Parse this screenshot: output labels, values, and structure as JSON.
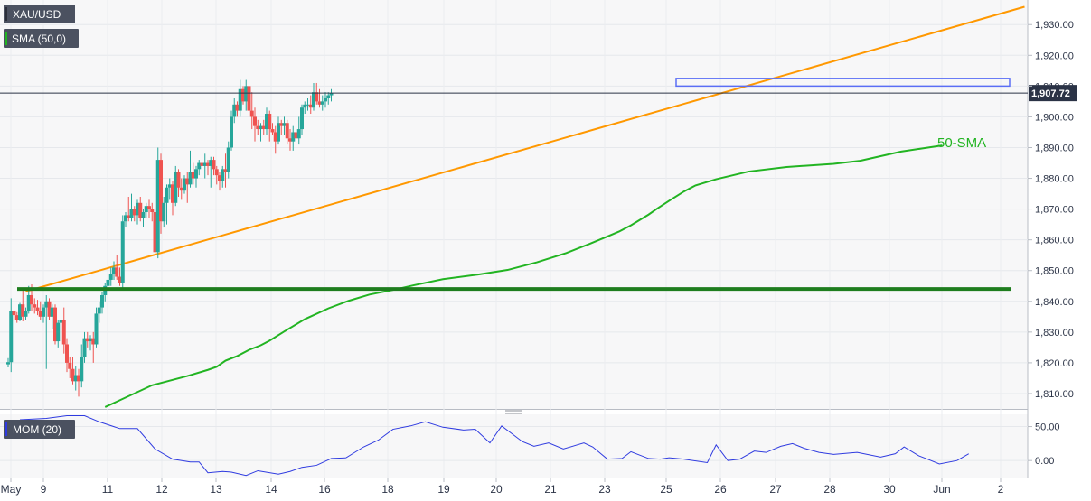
{
  "chart_data": [
    {
      "type": "candlestick",
      "symbol": "XAU/USD",
      "indicator_label": "SMA (50,0)",
      "sma_annotation": "50-SMA",
      "last_price_label": "1,907.72",
      "last_price": 1907.72,
      "ylim": [
        1805,
        1938
      ],
      "y_ticks": [
        "1,810.00",
        "1,820.00",
        "1,830.00",
        "1,840.00",
        "1,850.00",
        "1,860.00",
        "1,870.00",
        "1,880.00",
        "1,890.00",
        "1,900.00",
        "1,910.00",
        "1,920.00",
        "1,930.00"
      ],
      "x_labels": [
        "May",
        "9",
        "11",
        "12",
        "13",
        "14",
        "16",
        "18",
        "19",
        "20",
        "21",
        "23",
        "25",
        "26",
        "27",
        "28",
        "30",
        "Jun",
        "2"
      ],
      "grid": true,
      "colors": {
        "up": "#26a69a",
        "down": "#ef5350",
        "sma": "#22b422",
        "trendline": "#ff9800",
        "support": "#1e7d1e",
        "resistance_box": "#5b6ef5",
        "momentum": "#2f3be0",
        "price_line": "#2b3346"
      },
      "candles": [
        [
          1819.5,
          1821.5,
          1818.5,
          1820.2
        ],
        [
          1820.2,
          1841,
          1817,
          1837
        ],
        [
          1837,
          1841.5,
          1834,
          1835.5
        ],
        [
          1835.5,
          1836.5,
          1833,
          1834
        ],
        [
          1834,
          1839.5,
          1833.5,
          1839
        ],
        [
          1839,
          1843.5,
          1833.5,
          1835
        ],
        [
          1835,
          1838,
          1834,
          1837
        ],
        [
          1837,
          1845,
          1836,
          1842
        ],
        [
          1842,
          1845.5,
          1837,
          1839
        ],
        [
          1839,
          1841,
          1836,
          1838
        ],
        [
          1838,
          1840.5,
          1835.5,
          1837
        ],
        [
          1837,
          1840,
          1834,
          1835
        ],
        [
          1835,
          1839,
          1833,
          1838
        ],
        [
          1838,
          1842,
          1818,
          1840
        ],
        [
          1840,
          1841,
          1834,
          1835
        ],
        [
          1835,
          1839,
          1831,
          1838
        ],
        [
          1838,
          1839,
          1826,
          1827
        ],
        [
          1827,
          1834,
          1825,
          1833
        ],
        [
          1833,
          1844,
          1827,
          1834
        ],
        [
          1834,
          1838,
          1823,
          1826
        ],
        [
          1826,
          1828,
          1817,
          1820
        ],
        [
          1820,
          1822,
          1815,
          1818
        ],
        [
          1818,
          1822,
          1813,
          1814
        ],
        [
          1814,
          1819,
          1811,
          1816
        ],
        [
          1816,
          1818,
          1809,
          1814
        ],
        [
          1814,
          1826,
          1812,
          1822
        ],
        [
          1822,
          1830,
          1820,
          1828
        ],
        [
          1828,
          1830,
          1825,
          1827
        ],
        [
          1827,
          1829,
          1824,
          1828
        ],
        [
          1828,
          1830,
          1820,
          1826
        ],
        [
          1826,
          1838,
          1825,
          1836
        ],
        [
          1836,
          1840,
          1833,
          1838
        ],
        [
          1838,
          1843,
          1836,
          1842
        ],
        [
          1842,
          1846,
          1840,
          1845
        ],
        [
          1845,
          1848,
          1843,
          1847
        ],
        [
          1847,
          1851,
          1845,
          1849
        ],
        [
          1849,
          1853,
          1847,
          1851
        ],
        [
          1851,
          1855,
          1847,
          1848
        ],
        [
          1848,
          1851,
          1845,
          1846
        ],
        [
          1846,
          1868,
          1844,
          1866
        ],
        [
          1866,
          1869,
          1864,
          1868
        ],
        [
          1868,
          1874,
          1866,
          1867
        ],
        [
          1867,
          1875,
          1866,
          1870
        ],
        [
          1870,
          1871,
          1866,
          1868
        ],
        [
          1868,
          1873,
          1865,
          1872
        ],
        [
          1872,
          1874,
          1866,
          1867
        ],
        [
          1867,
          1870,
          1864,
          1869
        ],
        [
          1869,
          1872,
          1867,
          1871
        ],
        [
          1871,
          1873,
          1867,
          1870
        ],
        [
          1870,
          1872,
          1866,
          1869
        ],
        [
          1869,
          1871,
          1852,
          1856
        ],
        [
          1856,
          1890,
          1854,
          1886
        ],
        [
          1886,
          1888,
          1862,
          1866
        ],
        [
          1866,
          1874,
          1864,
          1872
        ],
        [
          1872,
          1878,
          1865,
          1877
        ],
        [
          1877,
          1880,
          1873,
          1878
        ],
        [
          1878,
          1879,
          1868,
          1872
        ],
        [
          1872,
          1884,
          1871,
          1882
        ],
        [
          1882,
          1883,
          1874,
          1877
        ],
        [
          1877,
          1880,
          1873,
          1876
        ],
        [
          1876,
          1881,
          1875,
          1880
        ],
        [
          1880,
          1882,
          1872,
          1878
        ],
        [
          1878,
          1889,
          1877,
          1882
        ],
        [
          1882,
          1885,
          1878,
          1880
        ],
        [
          1880,
          1884,
          1877,
          1883
        ],
        [
          1883,
          1886,
          1881,
          1885
        ],
        [
          1885,
          1887,
          1883,
          1884
        ],
        [
          1884,
          1888,
          1880,
          1885
        ],
        [
          1885,
          1886,
          1881,
          1884
        ],
        [
          1884,
          1887,
          1877,
          1886
        ],
        [
          1886,
          1887,
          1881,
          1883
        ],
        [
          1883,
          1884,
          1878,
          1881
        ],
        [
          1881,
          1882,
          1876,
          1879
        ],
        [
          1879,
          1884,
          1877,
          1883
        ],
        [
          1883,
          1888,
          1877,
          1882
        ],
        [
          1882,
          1892,
          1880,
          1890
        ],
        [
          1890,
          1902,
          1889,
          1900
        ],
        [
          1900,
          1906,
          1898,
          1904
        ],
        [
          1904,
          1905,
          1900,
          1902
        ],
        [
          1902,
          1912,
          1900,
          1909
        ],
        [
          1909,
          1910,
          1904,
          1905
        ],
        [
          1905,
          1912,
          1902,
          1910
        ],
        [
          1910,
          1911,
          1901,
          1902
        ],
        [
          1902,
          1908,
          1896,
          1900
        ],
        [
          1900,
          1903,
          1892,
          1897
        ],
        [
          1897,
          1899,
          1894,
          1896
        ],
        [
          1896,
          1898,
          1892,
          1897
        ],
        [
          1897,
          1899,
          1894,
          1896
        ],
        [
          1896,
          1903,
          1894,
          1901
        ],
        [
          1901,
          1902,
          1892,
          1896
        ],
        [
          1896,
          1898,
          1894,
          1895
        ],
        [
          1895,
          1897,
          1888,
          1892
        ],
        [
          1892,
          1900,
          1891,
          1898
        ],
        [
          1898,
          1899,
          1894,
          1897
        ],
        [
          1897,
          1900,
          1894,
          1898
        ],
        [
          1898,
          1899,
          1891,
          1893
        ],
        [
          1893,
          1896,
          1889,
          1892
        ],
        [
          1892,
          1897,
          1889,
          1895
        ],
        [
          1895,
          1898,
          1883,
          1893
        ],
        [
          1893,
          1900,
          1891,
          1896
        ],
        [
          1896,
          1904,
          1894,
          1903
        ],
        [
          1903,
          1905,
          1901,
          1904
        ],
        [
          1904,
          1906,
          1902,
          1904
        ],
        [
          1904,
          1907,
          1901,
          1903
        ],
        [
          1903,
          1911,
          1902,
          1908
        ],
        [
          1908,
          1911,
          1904,
          1905
        ],
        [
          1905,
          1909,
          1903,
          1904
        ],
        [
          1904,
          1907,
          1902,
          1905
        ],
        [
          1905,
          1908,
          1903,
          1906
        ],
        [
          1906,
          1908,
          1904,
          1907
        ],
        [
          1907,
          1909,
          1905,
          1907.72
        ]
      ],
      "sma_values": [
        [
          33,
          1805.6
        ],
        [
          49,
          1812.7
        ],
        [
          61,
          1815.7
        ],
        [
          68,
          1817.7
        ],
        [
          71,
          1818.7
        ],
        [
          74,
          1820.7
        ],
        [
          78,
          1822.2
        ],
        [
          82,
          1824.2
        ],
        [
          86,
          1825.7
        ],
        [
          89,
          1827.2
        ],
        [
          94,
          1830.2
        ],
        [
          101,
          1834.2
        ],
        [
          109,
          1837.7
        ],
        [
          116,
          1840.2
        ],
        [
          123,
          1842.2
        ],
        [
          131,
          1843.7
        ],
        [
          138,
          1845.2
        ],
        [
          148,
          1847.2
        ],
        [
          160,
          1848.7
        ],
        [
          170,
          1850.2
        ],
        [
          180,
          1852.7
        ],
        [
          190,
          1855.7
        ],
        [
          198,
          1858.7
        ],
        [
          203,
          1860.7
        ],
        [
          208,
          1862.7
        ],
        [
          212,
          1864.7
        ],
        [
          218,
          1868.2
        ],
        [
          221,
          1870.2
        ],
        [
          225,
          1872.7
        ],
        [
          230,
          1875.7
        ],
        [
          234,
          1877.7
        ],
        [
          241,
          1879.7
        ],
        [
          252,
          1882.2
        ],
        [
          265,
          1883.7
        ],
        [
          281,
          1884.7
        ],
        [
          290,
          1885.7
        ],
        [
          297,
          1887.2
        ],
        [
          304,
          1888.7
        ],
        [
          311,
          1889.7
        ],
        [
          318,
          1890.7
        ]
      ],
      "trendline": [
        [
          6,
          1843.2
        ],
        [
          346,
          1935.8
        ]
      ],
      "support_line": 1844,
      "resistance_zone": [
        1910,
        1912.5
      ],
      "momentum": {
        "label": "MOM (20)",
        "ticks": [
          "50.00",
          "0.00"
        ],
        "ylim": [
          -25,
          68
        ],
        "values": [
          [
            4,
            60
          ],
          [
            13,
            62
          ],
          [
            20,
            66
          ],
          [
            26,
            66
          ],
          [
            31,
            57
          ],
          [
            38,
            47
          ],
          [
            44,
            47
          ],
          [
            50,
            17
          ],
          [
            56,
            2
          ],
          [
            62,
            -2
          ],
          [
            65,
            -2
          ],
          [
            68,
            -18
          ],
          [
            73,
            -16
          ],
          [
            76,
            -17
          ],
          [
            81,
            -22
          ],
          [
            85,
            -15
          ],
          [
            92,
            -20
          ],
          [
            96,
            -16
          ],
          [
            100,
            -10
          ],
          [
            105,
            -7
          ],
          [
            110,
            3
          ],
          [
            115,
            4
          ],
          [
            121,
            20
          ],
          [
            126,
            30
          ],
          [
            131,
            46
          ],
          [
            137,
            51
          ],
          [
            142,
            57
          ],
          [
            148,
            49
          ],
          [
            155,
            45
          ],
          [
            159,
            46
          ],
          [
            164,
            26
          ],
          [
            168,
            51
          ],
          [
            175,
            28
          ],
          [
            179,
            21
          ],
          [
            184,
            26
          ],
          [
            189,
            17
          ],
          [
            196,
            26
          ],
          [
            199,
            20
          ],
          [
            204,
            2
          ],
          [
            209,
            3
          ],
          [
            212,
            13
          ],
          [
            218,
            3
          ],
          [
            222,
            2
          ],
          [
            225,
            4
          ],
          [
            230,
            2
          ],
          [
            238,
            -3
          ],
          [
            241,
            23
          ],
          [
            245,
            0
          ],
          [
            249,
            2
          ],
          [
            254,
            14
          ],
          [
            258,
            12
          ],
          [
            263,
            21
          ],
          [
            267,
            25
          ],
          [
            271,
            18
          ],
          [
            276,
            12
          ],
          [
            281,
            9
          ],
          [
            289,
            12
          ],
          [
            297,
            5
          ],
          [
            302,
            10
          ],
          [
            305,
            20
          ],
          [
            310,
            7
          ],
          [
            313,
            2
          ],
          [
            317,
            -5
          ],
          [
            323,
            0
          ],
          [
            327,
            10
          ]
        ]
      }
    }
  ]
}
